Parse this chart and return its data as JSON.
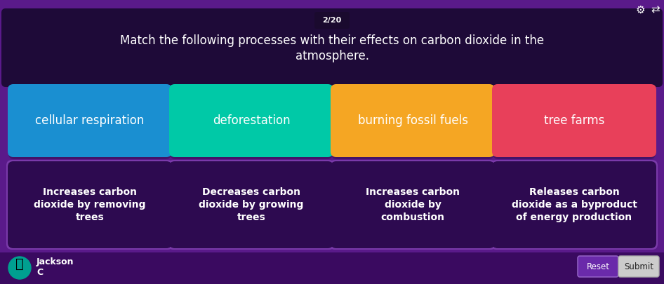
{
  "bg_color": "#5a1a8a",
  "header_bg": "#1e0a38",
  "title_text_line1": "Match the following processes with their effects on carbon dioxide in the",
  "title_text_line2": "atmosphere.",
  "badge_text": "2/20",
  "top_cards": [
    {
      "label": "cellular respiration",
      "color": "#1a8fd1"
    },
    {
      "label": "deforestation",
      "color": "#00c9a7"
    },
    {
      "label": "burning fossil fuels",
      "color": "#f5a623"
    },
    {
      "label": "tree farms",
      "color": "#e8405a"
    }
  ],
  "bottom_cards": [
    {
      "label": "Increases carbon\ndioxide by removing\ntrees"
    },
    {
      "label": "Decreases carbon\ndioxide by growing\ntrees"
    },
    {
      "label": "Increases carbon\ndioxide by\ncombustion"
    },
    {
      "label": "Releases carbon\ndioxide as a byproduct\nof energy production"
    }
  ],
  "bottom_card_color": "#2d0a50",
  "bottom_card_border": "#7a3aaa",
  "text_color_white": "#ffffff",
  "reset_btn_color": "#6a2aaa",
  "reset_btn_border": "#9a6acc",
  "submit_btn_color": "#cccccc",
  "footer_name": "Jackson",
  "footer_grade": "C",
  "gear_icon": "⚙",
  "arrows_icon": "⇄",
  "badge_bg": "#1a0a2e"
}
